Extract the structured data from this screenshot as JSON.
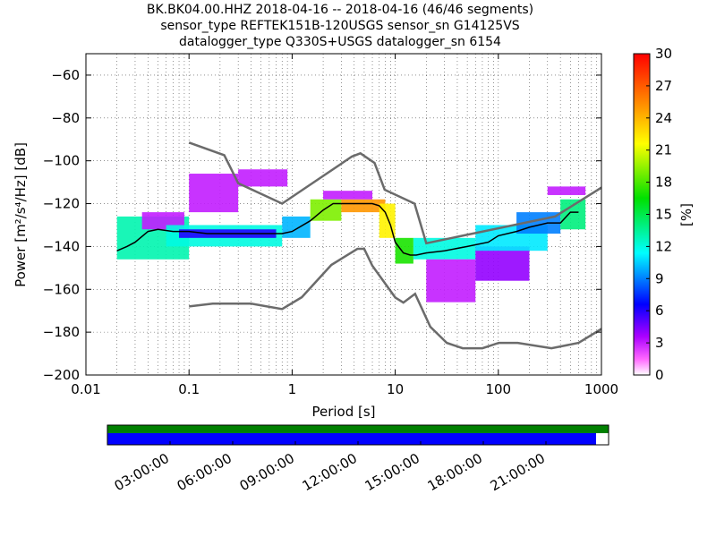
{
  "title": {
    "line1": "BK.BK04.00.HHZ   2018-04-16 -- 2018-04-16  (46/46 segments)",
    "line2": "sensor_type REFTEK151B-120USGS sensor_sn G14125VS",
    "line3": "datalogger_type Q330S+USGS datalogger_sn 6154"
  },
  "chart_data": [
    {
      "type": "heatmap",
      "title": "BK.BK04.00.HHZ   2018-04-16 -- 2018-04-16  (46/46 segments)",
      "xlabel": "Period [s]",
      "ylabel": "Power [m²/s⁴/Hz] [dB]",
      "x_scale": "log",
      "xlim": [
        0.01,
        1000
      ],
      "ylim": [
        -200,
        -50
      ],
      "x_ticks": [
        0.01,
        0.1,
        1,
        10,
        100,
        1000
      ],
      "x_tick_labels": [
        "0.01",
        "0.1",
        "1",
        "10",
        "100",
        "1000"
      ],
      "y_ticks": [
        -200,
        -180,
        -160,
        -140,
        -120,
        -100,
        -80,
        -60
      ],
      "y_tick_labels": [
        "−200",
        "−180",
        "−160",
        "−140",
        "−120",
        "−100",
        "−80",
        "−60"
      ],
      "grid": true,
      "colorbar": {
        "label": "[%]",
        "range": [
          0,
          30
        ],
        "ticks": [
          0,
          3,
          6,
          9,
          12,
          15,
          18,
          21,
          24,
          27,
          30
        ],
        "tick_labels": [
          "0",
          "3",
          "6",
          "9",
          "12",
          "15",
          "18",
          "21",
          "24",
          "27",
          "30"
        ]
      },
      "noise_models": [
        {
          "name": "",
          "x": [
            0.1,
            0.22,
            0.3,
            0.8,
            3.8,
            4.6,
            6.3,
            7.9,
            15.4,
            20,
            354.8,
            1000
          ],
          "y": [
            -91.5,
            -97.4,
            -110.5,
            -120,
            -98,
            -96.5,
            -101,
            -113.5,
            -120,
            -138.5,
            -126,
            -112.5
          ]
        },
        {
          "name": "",
          "x": [
            0.1,
            0.17,
            0.4,
            0.8,
            1.24,
            2.4,
            4.3,
            5,
            6,
            10,
            12,
            15.6,
            21.9,
            31.6,
            45,
            70,
            101,
            154,
            328,
            600,
            1000
          ],
          "y": [
            -168,
            -166.7,
            -166.7,
            -169.2,
            -163.7,
            -148.6,
            -141.1,
            -141.1,
            -149,
            -163.8,
            -166.2,
            -162.1,
            -177.5,
            -185,
            -187.5,
            -187.5,
            -185,
            -185,
            -187.5,
            -185,
            -178.5
          ]
        }
      ],
      "mode": {
        "x": [
          0.02,
          0.025,
          0.03,
          0.04,
          0.05,
          0.07,
          0.1,
          0.15,
          0.2,
          0.3,
          0.5,
          0.8,
          1,
          1.5,
          2,
          2.5,
          3,
          4,
          5,
          6,
          7,
          8,
          9,
          10,
          12,
          14,
          16,
          20,
          30,
          50,
          80,
          100,
          150,
          200,
          300,
          400,
          500,
          600
        ],
        "y": [
          -142,
          -140,
          -138,
          -133,
          -132,
          -133,
          -133,
          -134,
          -134,
          -134,
          -134,
          -134,
          -133,
          -128,
          -123,
          -120,
          -120,
          -120,
          -120,
          -120,
          -121,
          -124,
          -130,
          -138,
          -143,
          -144,
          -144,
          -143,
          -142,
          -140,
          -138,
          -135,
          -133,
          -131,
          -129,
          -129,
          -124,
          -124
        ]
      },
      "histogram_cells": [
        {
          "x": [
            0.02,
            0.1
          ],
          "y": [
            -146,
            -126
          ],
          "level": 13
        },
        {
          "x": [
            0.035,
            0.09
          ],
          "y": [
            -132,
            -124
          ],
          "level": 3
        },
        {
          "x": [
            0.06,
            0.8
          ],
          "y": [
            -140,
            -130
          ],
          "level": 12
        },
        {
          "x": [
            0.08,
            0.7
          ],
          "y": [
            -136,
            -132
          ],
          "level": 6
        },
        {
          "x": [
            0.1,
            0.3
          ],
          "y": [
            -124,
            -106
          ],
          "level": 3
        },
        {
          "x": [
            0.3,
            0.9
          ],
          "y": [
            -112,
            -104
          ],
          "level": 3
        },
        {
          "x": [
            0.8,
            1.5
          ],
          "y": [
            -136,
            -126
          ],
          "level": 10
        },
        {
          "x": [
            1.5,
            3
          ],
          "y": [
            -128,
            -118
          ],
          "level": 19
        },
        {
          "x": [
            3,
            8
          ],
          "y": [
            -124,
            -118
          ],
          "level": 25
        },
        {
          "x": [
            2,
            6
          ],
          "y": [
            -118,
            -114
          ],
          "level": 3
        },
        {
          "x": [
            7,
            10
          ],
          "y": [
            -136,
            -120
          ],
          "level": 22
        },
        {
          "x": [
            10,
            15
          ],
          "y": [
            -148,
            -136
          ],
          "level": 17
        },
        {
          "x": [
            15,
            60
          ],
          "y": [
            -146,
            -136
          ],
          "level": 12
        },
        {
          "x": [
            20,
            60
          ],
          "y": [
            -166,
            -146
          ],
          "level": 3
        },
        {
          "x": [
            60,
            200
          ],
          "y": [
            -156,
            -140
          ],
          "level": 4
        },
        {
          "x": [
            60,
            300
          ],
          "y": [
            -142,
            -130
          ],
          "level": 11
        },
        {
          "x": [
            150,
            400
          ],
          "y": [
            -134,
            -124
          ],
          "level": 9
        },
        {
          "x": [
            400,
            700
          ],
          "y": [
            -132,
            -118
          ],
          "level": 14
        },
        {
          "x": [
            300,
            700
          ],
          "y": [
            -116,
            -112
          ],
          "level": 3
        }
      ]
    },
    {
      "type": "timeline",
      "tick_labels": [
        "03:00:00",
        "06:00:00",
        "09:00:00",
        "12:00:00",
        "15:00:00",
        "18:00:00",
        "21:00:00"
      ],
      "rows": [
        {
          "name": "",
          "color": "#008000",
          "coverage": [
            0.0,
            1.0
          ]
        },
        {
          "name": "",
          "color": "#0000ff",
          "coverage": [
            0.0,
            0.975
          ]
        }
      ]
    }
  ],
  "colors": {
    "noise_model": "#6b6b6b",
    "mode_line": "#000000",
    "timeline_green": "#008000",
    "timeline_blue": "#0000ff"
  }
}
